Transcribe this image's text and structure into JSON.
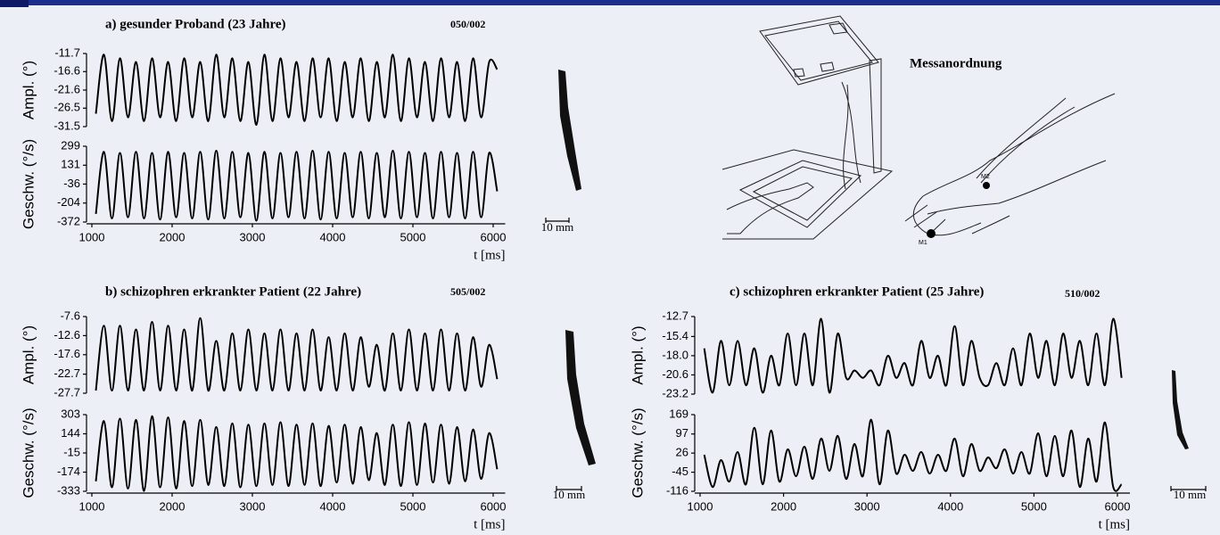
{
  "chart_data": [
    {
      "type": "line",
      "title": "a) gesunder Proband (23 Jahre)",
      "code": "050/002",
      "xlabel": "t [ms]",
      "scale_label": "10 mm",
      "xlim": [
        1000,
        6150
      ],
      "xticks": [
        1000,
        2000,
        3000,
        4000,
        5000,
        6000
      ],
      "x": [
        1050,
        1150,
        1250,
        1350,
        1450,
        1550,
        1650,
        1750,
        1850,
        1950,
        2050,
        2150,
        2250,
        2350,
        2450,
        2550,
        2650,
        2750,
        2850,
        2950,
        3050,
        3150,
        3250,
        3350,
        3450,
        3550,
        3650,
        3750,
        3850,
        3950,
        4050,
        4150,
        4250,
        4350,
        4450,
        4550,
        4650,
        4750,
        4850,
        4950,
        5050,
        5150,
        5250,
        5350,
        5450,
        5550,
        5650,
        5750,
        5850,
        5950,
        6050
      ],
      "amplitude": {
        "ylabel": "Ampl. (°)",
        "color": "#000000",
        "ylim": [
          -31.5,
          -11.7
        ],
        "yticks": [
          -11.7,
          -16.6,
          -21.6,
          -26.5,
          -31.5
        ],
        "values": [
          -28,
          -12,
          -30,
          -13,
          -29,
          -14,
          -30,
          -13,
          -29,
          -14,
          -30,
          -13,
          -29,
          -14,
          -30,
          -12,
          -29,
          -13,
          -30,
          -14,
          -31,
          -12,
          -30,
          -13,
          -29,
          -14,
          -30,
          -13,
          -29,
          -13,
          -30,
          -14,
          -29,
          -13,
          -30,
          -14,
          -29,
          -12,
          -30,
          -13,
          -29,
          -14,
          -30,
          -13,
          -29,
          -14,
          -30,
          -13,
          -29,
          -14,
          -16
        ]
      },
      "velocity": {
        "ylabel": "Geschw. (°/s)",
        "color": "#000000",
        "ylim": [
          -372,
          299
        ],
        "yticks": [
          299,
          131,
          -36,
          -204,
          -372
        ],
        "values": [
          -300,
          250,
          -340,
          240,
          -330,
          250,
          -340,
          240,
          -350,
          250,
          -330,
          240,
          -340,
          250,
          -350,
          260,
          -340,
          250,
          -330,
          240,
          -360,
          250,
          -340,
          240,
          -330,
          250,
          -340,
          260,
          -350,
          250,
          -340,
          240,
          -330,
          250,
          -340,
          240,
          -330,
          260,
          -340,
          250,
          -330,
          240,
          -340,
          250,
          -330,
          240,
          -340,
          250,
          -330,
          240,
          -100
        ]
      }
    },
    {
      "type": "line",
      "title": "b) schizophren erkrankter Patient (22 Jahre)",
      "code": "505/002",
      "xlabel": "t [ms]",
      "scale_label": "10 mm",
      "xlim": [
        1000,
        6150
      ],
      "xticks": [
        1000,
        2000,
        3000,
        4000,
        5000,
        6000
      ],
      "x": [
        1050,
        1150,
        1250,
        1350,
        1450,
        1550,
        1650,
        1750,
        1850,
        1950,
        2050,
        2150,
        2250,
        2350,
        2450,
        2550,
        2650,
        2750,
        2850,
        2950,
        3050,
        3150,
        3250,
        3350,
        3450,
        3550,
        3650,
        3750,
        3850,
        3950,
        4050,
        4150,
        4250,
        4350,
        4450,
        4550,
        4650,
        4750,
        4850,
        4950,
        5050,
        5150,
        5250,
        5350,
        5450,
        5550,
        5650,
        5750,
        5850,
        5950,
        6050
      ],
      "amplitude": {
        "ylabel": "Ampl. (°)",
        "color": "#000000",
        "ylim": [
          -27.7,
          -7.6
        ],
        "yticks": [
          -7.6,
          -12.6,
          -17.6,
          -22.7,
          -27.7
        ],
        "values": [
          -27,
          -10,
          -27,
          -10,
          -27,
          -11,
          -27,
          -9,
          -27,
          -10,
          -27,
          -11,
          -27,
          -8,
          -27,
          -14,
          -27,
          -12,
          -27,
          -11,
          -27,
          -12,
          -27,
          -11,
          -27,
          -12,
          -27,
          -11,
          -27,
          -13,
          -27,
          -12,
          -27,
          -13,
          -26,
          -15,
          -27,
          -12,
          -27,
          -11,
          -27,
          -12,
          -27,
          -11,
          -27,
          -12,
          -27,
          -13,
          -26,
          -15,
          -24
        ]
      },
      "velocity": {
        "ylabel": "Geschw. (°/s)",
        "color": "#000000",
        "ylim": [
          -333,
          303
        ],
        "yticks": [
          303,
          144,
          -15,
          -174,
          -333
        ],
        "values": [
          -250,
          250,
          -300,
          270,
          -310,
          260,
          -330,
          290,
          -300,
          280,
          -310,
          250,
          -290,
          260,
          -280,
          200,
          -290,
          230,
          -300,
          220,
          -290,
          230,
          -280,
          240,
          -290,
          220,
          -280,
          230,
          -290,
          210,
          -260,
          220,
          -270,
          200,
          -240,
          150,
          -280,
          220,
          -290,
          240,
          -280,
          230,
          -260,
          220,
          -270,
          200,
          -250,
          180,
          -230,
          150,
          -150
        ]
      }
    },
    {
      "type": "line",
      "title": "c) schizophren erkrankter Patient (25 Jahre)",
      "code": "510/002",
      "xlabel": "t [ms]",
      "scale_label": "10 mm",
      "xlim": [
        1000,
        6150
      ],
      "xticks": [
        1000,
        2000,
        3000,
        4000,
        5000,
        6000
      ],
      "x": [
        1050,
        1150,
        1250,
        1350,
        1450,
        1550,
        1650,
        1750,
        1850,
        1950,
        2050,
        2150,
        2250,
        2350,
        2450,
        2550,
        2650,
        2750,
        2850,
        2950,
        3050,
        3150,
        3250,
        3350,
        3450,
        3550,
        3650,
        3750,
        3850,
        3950,
        4050,
        4150,
        4250,
        4350,
        4450,
        4550,
        4650,
        4750,
        4850,
        4950,
        5050,
        5150,
        5250,
        5350,
        5450,
        5550,
        5650,
        5750,
        5850,
        5950,
        6050
      ],
      "amplitude": {
        "ylabel": "Ampl. (°)",
        "color": "#000000",
        "ylim": [
          -23.2,
          -12.7
        ],
        "yticks": [
          -12.7,
          -15.4,
          {
            "value": -18,
            "label": "-18.0"
          },
          -20.6,
          -23.2
        ],
        "values": [
          -17,
          -23,
          -16,
          -22,
          -16,
          -22,
          -17,
          -23,
          -18,
          -22,
          -15,
          -22,
          -15,
          -22,
          -13,
          -23,
          -15,
          -21,
          -20,
          -21,
          -20,
          -22,
          -18,
          -21,
          -19,
          -22,
          -16,
          -21,
          -18,
          -22,
          -14,
          -22,
          -16,
          -21,
          -22,
          -19,
          -22,
          -17,
          -22,
          -15,
          -21,
          -16,
          -22,
          -15,
          -21,
          -16,
          -22,
          -15,
          -22,
          -13,
          -21
        ]
      },
      "velocity": {
        "ylabel": "Geschw. (°/s)",
        "color": "#000000",
        "ylim": [
          -116,
          169
        ],
        "yticks": [
          169,
          97,
          26,
          -45,
          -116
        ],
        "values": [
          20,
          -100,
          0,
          -80,
          30,
          -90,
          120,
          -90,
          110,
          -80,
          40,
          -60,
          50,
          -70,
          80,
          -40,
          90,
          -70,
          60,
          -60,
          150,
          -90,
          110,
          -50,
          20,
          -40,
          30,
          -50,
          20,
          -40,
          80,
          -60,
          60,
          -40,
          10,
          -30,
          40,
          -50,
          30,
          -50,
          100,
          -60,
          90,
          -60,
          110,
          -100,
          80,
          -80,
          140,
          -100,
          -90
        ]
      }
    }
  ],
  "illustration": {
    "title": "Messanordnung",
    "labels": [
      "M1",
      "M2"
    ]
  }
}
